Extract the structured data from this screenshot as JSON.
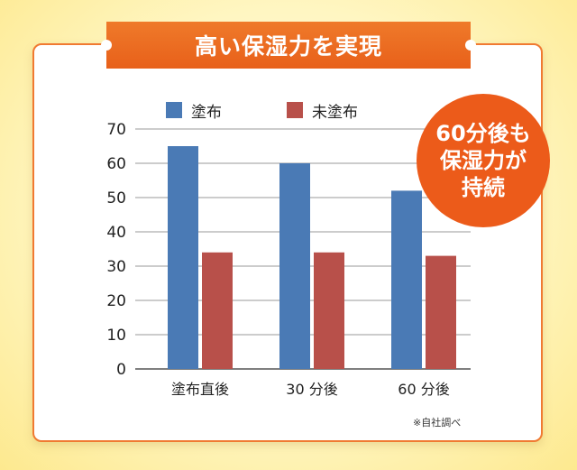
{
  "banner_title": "高い保湿力を実現",
  "badge": {
    "lines": [
      "60分後も",
      "保湿力が",
      "持続"
    ],
    "color": "#ec5b1a"
  },
  "footnote": "※自社調べ",
  "chart_data": {
    "type": "bar",
    "categories": [
      "塗布直後",
      "30 分後",
      "60 分後"
    ],
    "series": [
      {
        "name": "塗布",
        "values": [
          65,
          60,
          52
        ],
        "color": "#4a7ab5"
      },
      {
        "name": "未塗布",
        "values": [
          34,
          34,
          33
        ],
        "color": "#b8504a"
      }
    ],
    "ylim": [
      0,
      70
    ],
    "yticks": [
      0,
      10,
      20,
      30,
      40,
      50,
      60,
      70
    ],
    "grid": true,
    "legend": "top"
  }
}
